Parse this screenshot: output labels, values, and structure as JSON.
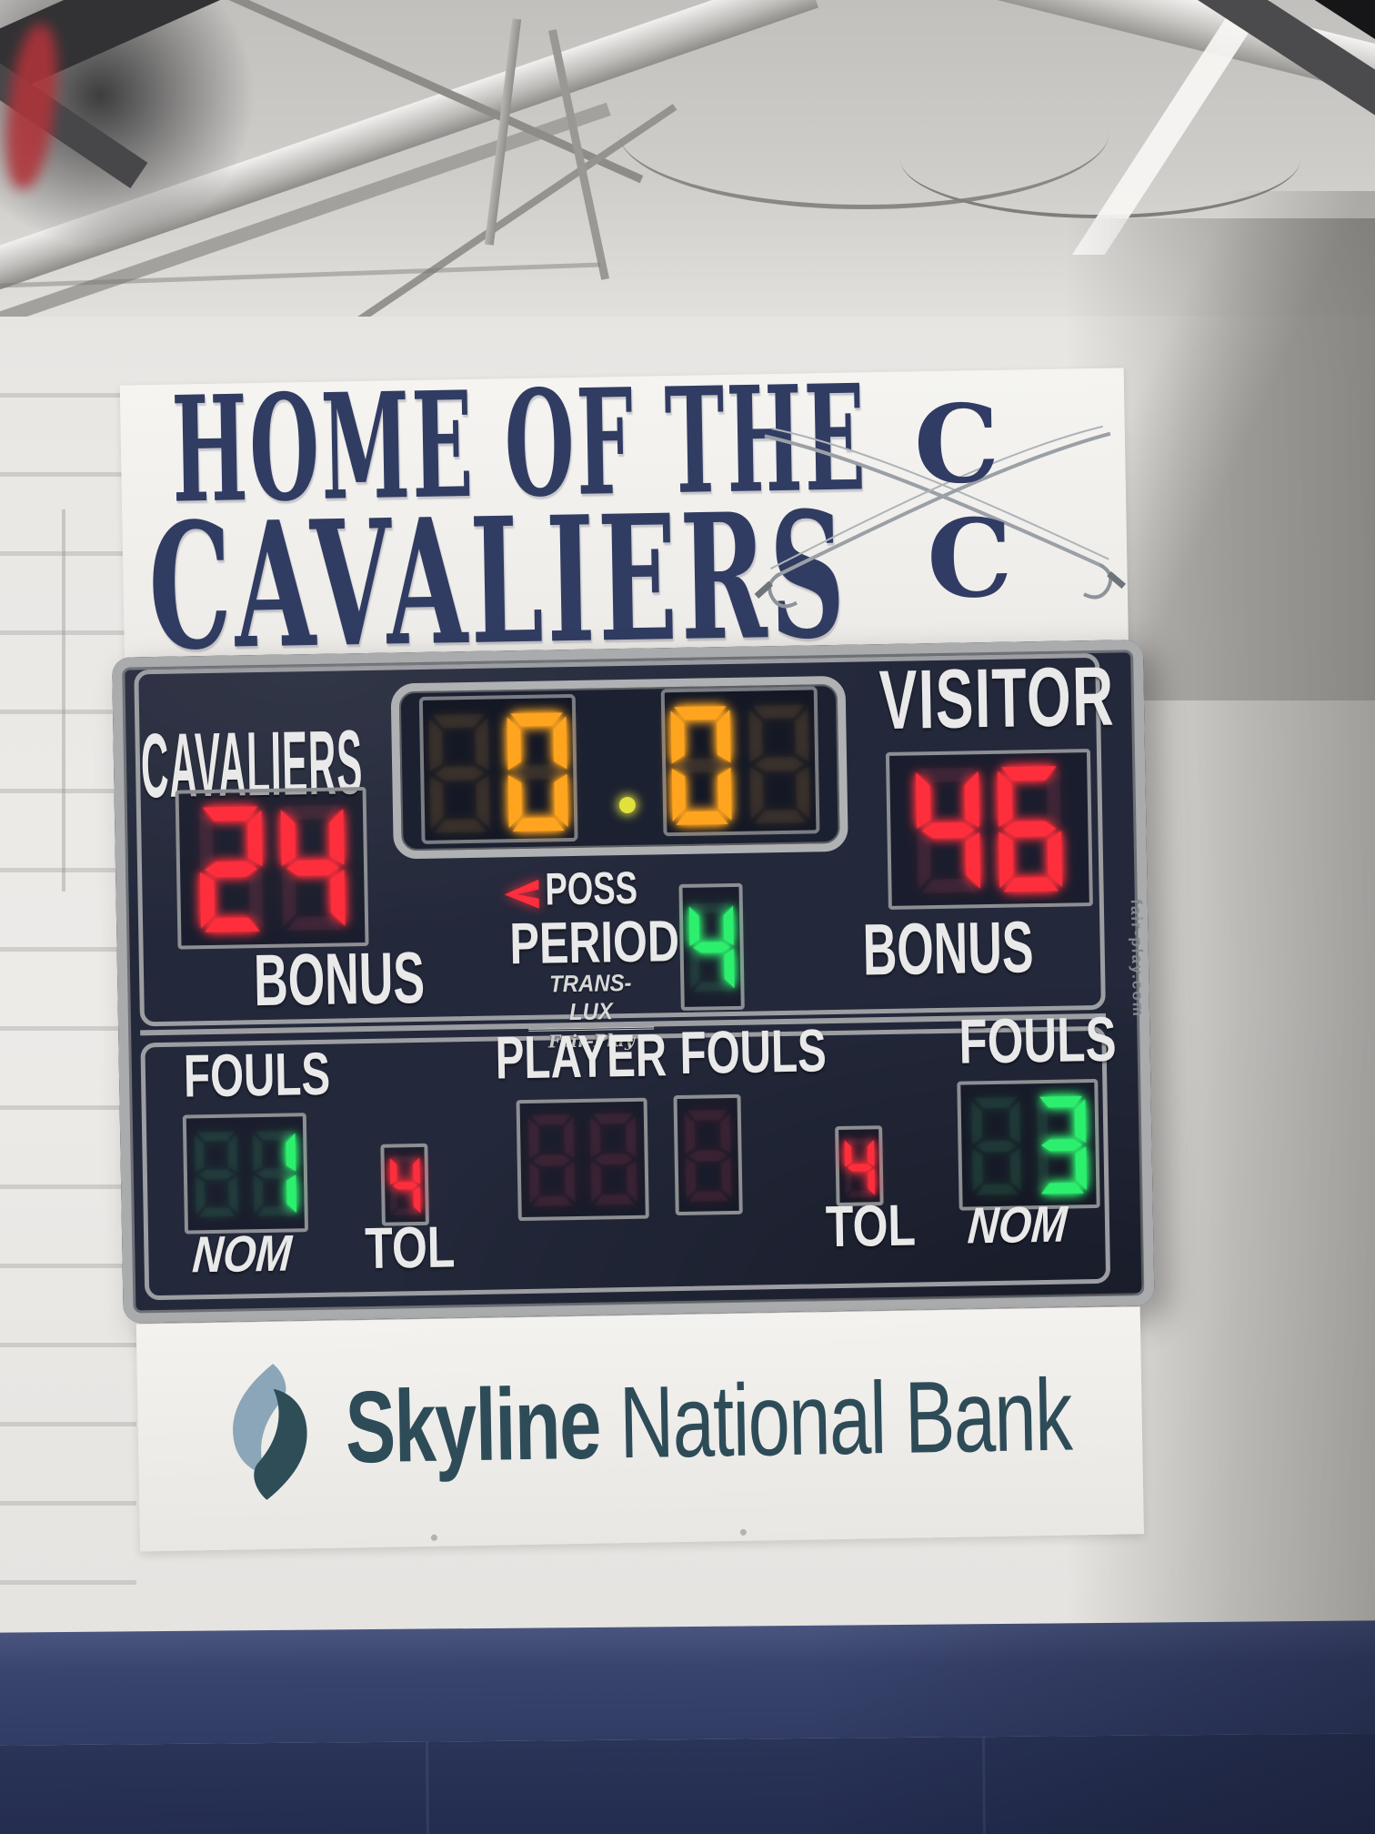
{
  "banner": {
    "line1": "HOME OF THE",
    "line2": "CAVALIERS",
    "monogram_top": "C",
    "monogram_bottom": "C"
  },
  "scoreboard": {
    "home_team_label": "CAVALIERS",
    "visitor_label": "VISITOR",
    "clock_left": " 0",
    "clock_right": "0 ",
    "home_score": "24",
    "visitor_score": "46",
    "home_bonus_label": "BONUS",
    "visitor_bonus_label": "BONUS",
    "poss_label": "POSS",
    "period_label": "PERIOD",
    "period_value": "4",
    "brand_line1": "TRANS-LUX",
    "brand_line2": "Fair-Play",
    "player_label": "PLAYER",
    "player_value": "  ",
    "center_fouls_label": "FOULS",
    "center_fouls_value": " ",
    "home_fouls_label": "FOULS",
    "home_fouls_value": " 1",
    "home_nom_label": "NOM",
    "home_tol_label": "TOL",
    "home_tol_value": "4",
    "visitor_fouls_label": "FOULS",
    "visitor_fouls_value": " 3",
    "visitor_nom_label": "NOM",
    "visitor_tol_label": "TOL",
    "visitor_tol_value": "4",
    "frame_brand": "fair-play.com"
  },
  "sponsor": {
    "name_bold": "Skyline",
    "name_rest": " National Bank"
  },
  "colors": {
    "red": "#ff2e3c",
    "amber": "#ffa41e",
    "green": "#2cef6e",
    "dot": "#e0e13a",
    "banner_navy": "#313c62",
    "board_bg": "#23283a",
    "sponsor_teal": "#2e4b58",
    "logo_light": "#8ba6b8",
    "logo_dark": "#2e4d57"
  }
}
